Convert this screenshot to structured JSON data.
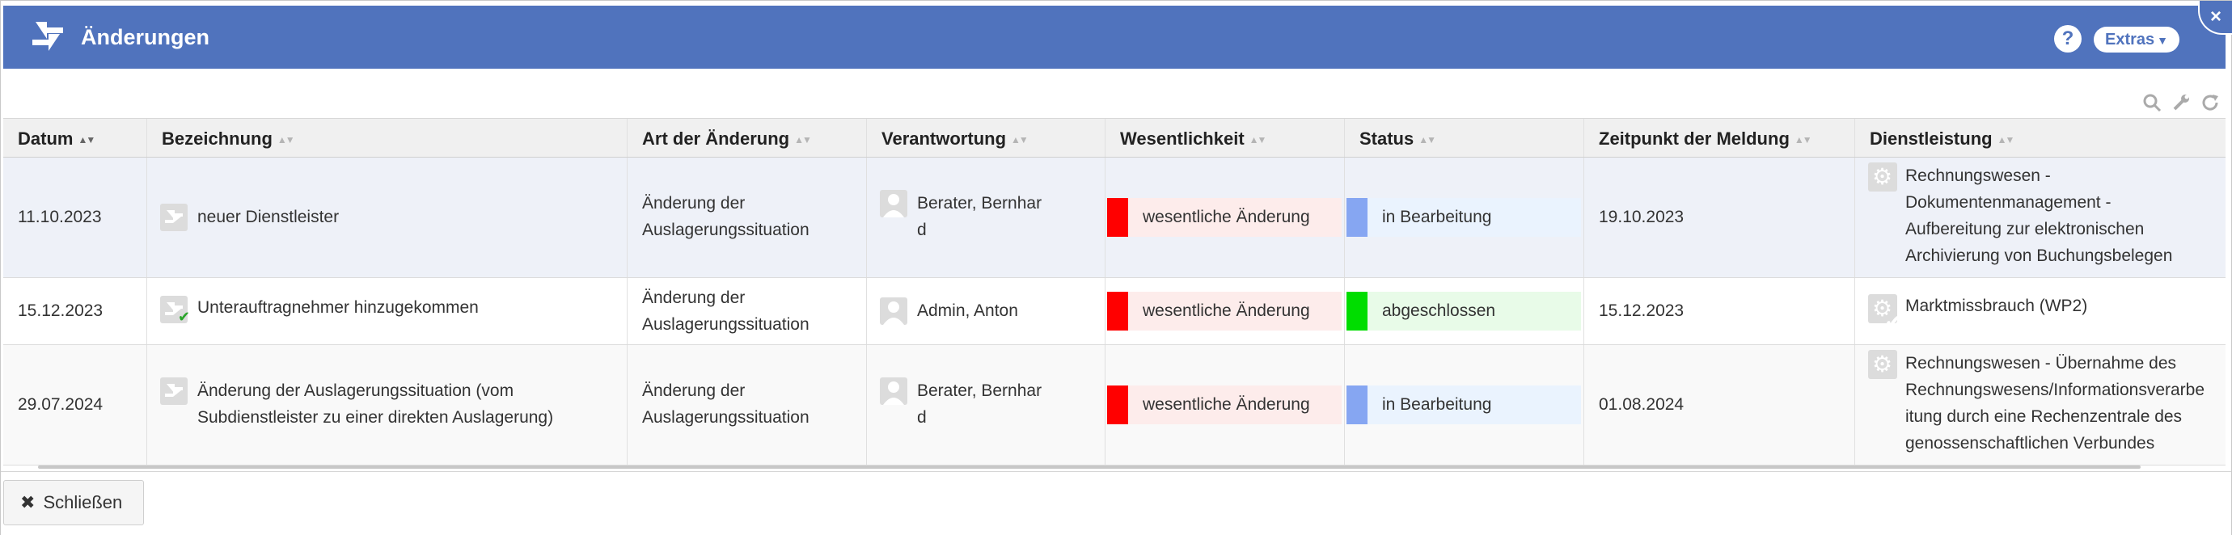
{
  "header": {
    "title": "Änderungen",
    "help_label": "?",
    "extras_label": "Extras",
    "close_label": "×"
  },
  "columns": [
    "Datum",
    "Bezeichnung",
    "Art der Änderung",
    "Verantwortung",
    "Wesentlichkeit",
    "Status",
    "Zeitpunkt der Meldung",
    "Dienstleistung"
  ],
  "rows": [
    {
      "datum": "11.10.2023",
      "bezeichnung": [
        "neuer Dienstleister"
      ],
      "art": [
        "Änderung der",
        "Auslagerungssituation"
      ],
      "verantwortung": [
        "Berater, Bernhar",
        "d"
      ],
      "wesentlichkeit": "wesentliche Änderung",
      "status": "in Bearbeitung",
      "zeitpunkt": "19.10.2023",
      "dienstleistung": [
        "Rechnungswesen -",
        "Dokumentenmanagement -",
        "Aufbereitung zur elektronischen",
        "Archivierung von Buchungsbelegen"
      ]
    },
    {
      "datum": "15.12.2023",
      "bezeichnung": [
        "Unterauftragnehmer hinzugekommen"
      ],
      "art": [
        "Änderung der",
        "Auslagerungssituation"
      ],
      "verantwortung": [
        "Admin, Anton"
      ],
      "wesentlichkeit": "wesentliche Änderung",
      "status": "abgeschlossen",
      "zeitpunkt": "15.12.2023",
      "dienstleistung": [
        "Marktmissbrauch (WP2)"
      ]
    },
    {
      "datum": "29.07.2024",
      "bezeichnung": [
        "Änderung der Auslagerungssituation (vom",
        "Subdienstleister zu einer direkten Auslagerung)"
      ],
      "art": [
        "Änderung der",
        "Auslagerungssituation"
      ],
      "verantwortung": [
        "Berater, Bernhar",
        "d"
      ],
      "wesentlichkeit": "wesentliche Änderung",
      "status": "in Bearbeitung",
      "zeitpunkt": "01.08.2024",
      "dienstleistung": [
        "Rechnungswesen - Übernahme des",
        "Rechnungswesens/Informationsverarbe",
        "itung durch eine Rechenzentrale des",
        "genossenschaftlichen Verbundes"
      ]
    }
  ],
  "footer": {
    "close_label": "Schließen"
  },
  "colors": {
    "header_bg": "#5073bd",
    "wesentlich_bar": "#ff0000",
    "wesentlich_bg": "#fdeceb",
    "bearbeitung_bar": "#86a6f2",
    "bearbeitung_bg": "#eaf3fe",
    "abgeschlossen_bar": "#00dd00",
    "abgeschlossen_bg": "#e8fbe8"
  },
  "icons": [
    "swap-icon",
    "help-icon",
    "close-icon",
    "search-icon",
    "wrench-icon",
    "refresh-icon",
    "change-doc-icon",
    "person-icon",
    "gear-icon"
  ]
}
